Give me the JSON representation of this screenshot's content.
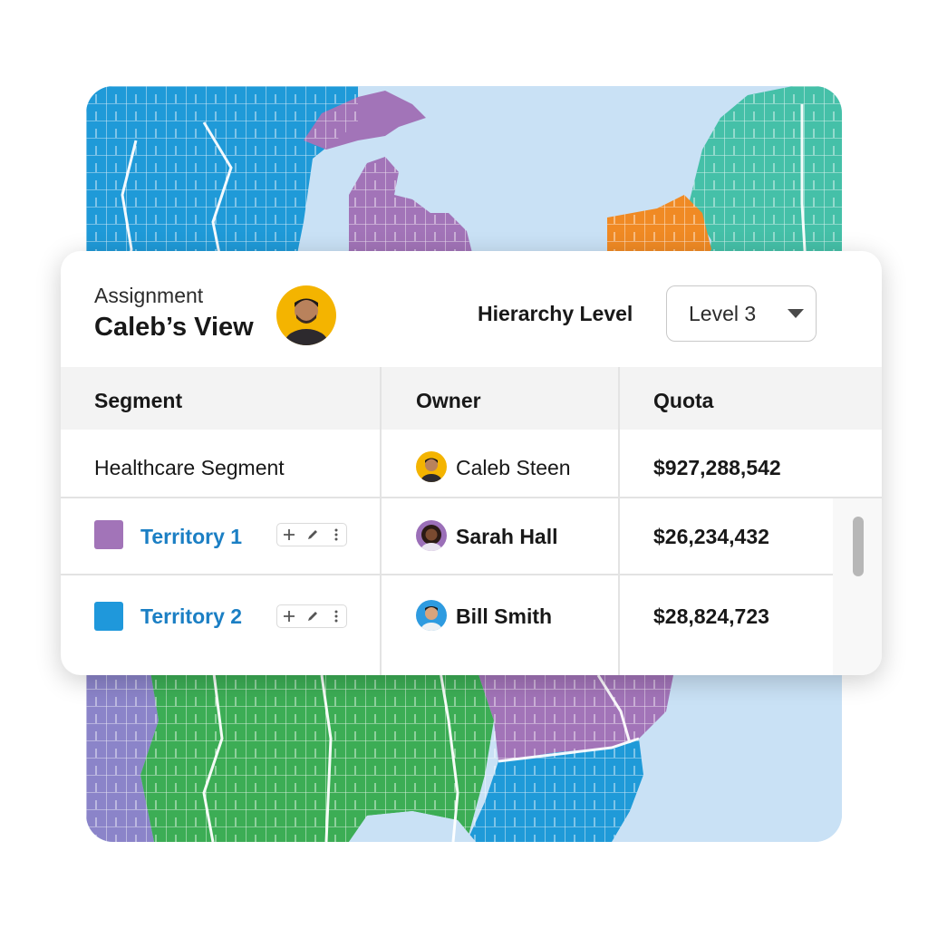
{
  "header": {
    "subtitle": "Assignment",
    "title": "Caleb’s View",
    "hierarchy_label": "Hierarchy Level",
    "level_value": "Level 3"
  },
  "table": {
    "columns": [
      "Segment",
      "Owner",
      "Quota"
    ],
    "rows": [
      {
        "segment": "Healthcare Segment",
        "owner": "Caleb Steen",
        "quota": "$927,288,542"
      },
      {
        "segment": "Territory 1",
        "owner": "Sarah Hall",
        "quota": "$26,234,432",
        "color": "#a274b8"
      },
      {
        "segment": "Territory 2",
        "owner": "Bill Smith",
        "quota": "$28,824,723",
        "color": "#1f98db"
      }
    ]
  },
  "map_colors": {
    "water": "#c9e1f5",
    "blue": "#1f9ad8",
    "purple": "#a274b8",
    "teal": "#45c0a8",
    "orange": "#f08a24",
    "green": "#3cad55",
    "violet": "#8b84c9",
    "county_lines": "#ffffff"
  },
  "icons": {
    "zoom_in": "zoom-in-icon",
    "collapse": "collapse-icon",
    "zoom_out": "zoom-out-icon"
  }
}
